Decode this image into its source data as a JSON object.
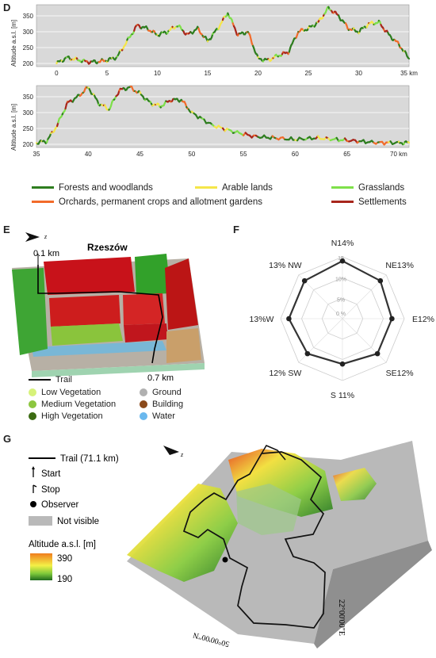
{
  "panels": {
    "D": "D",
    "E": "E",
    "F": "F",
    "G": "G"
  },
  "panel_d": {
    "ylabel": "Altitude a.s.l. [m]",
    "top_xticks": [
      "0",
      "5",
      "10",
      "15",
      "20",
      "25",
      "30",
      "35 km"
    ],
    "top_yticks": [
      "200",
      "250",
      "300",
      "350"
    ],
    "bottom_xticks": [
      "35",
      "40",
      "45",
      "50",
      "55",
      "60",
      "65",
      "70 km"
    ],
    "bottom_yticks": [
      "200",
      "250",
      "300",
      "350"
    ],
    "legend": [
      {
        "label": "Forests and woodlands",
        "color": "#2e7d1f"
      },
      {
        "label": "Arable lands",
        "color": "#f5e64a"
      },
      {
        "label": "Grasslands",
        "color": "#7ee04a"
      },
      {
        "label": "Orchards, permanent crops and allotment gardens",
        "color": "#f26b2a"
      },
      {
        "label": "Settlements",
        "color": "#a8261c"
      }
    ]
  },
  "panel_e": {
    "city": "Rzeszów",
    "north_symbol": "z",
    "marker_start": "0.1 km",
    "marker_end": "0.7 km",
    "legend": [
      {
        "label": "Trail",
        "type": "line",
        "color": "#000000"
      },
      {
        "label": "Low Vegetation",
        "color": "#d7f27a"
      },
      {
        "label": "Ground",
        "color": "#b0b0b0"
      },
      {
        "label": "Medium Vegetation",
        "color": "#8cc63f"
      },
      {
        "label": "Building",
        "color": "#8b4a1a"
      },
      {
        "label": "High Vegetation",
        "color": "#3b6b12"
      },
      {
        "label": "Water",
        "color": "#6ab8ee"
      }
    ]
  },
  "panel_f": {
    "labels": [
      {
        "dir": "N",
        "text": "N14%"
      },
      {
        "dir": "NE",
        "text": "NE13%"
      },
      {
        "dir": "E",
        "text": "E12%"
      },
      {
        "dir": "SE",
        "text": "SE12%"
      },
      {
        "dir": "S",
        "text": "S 11%"
      },
      {
        "dir": "SW",
        "text": "12%  SW"
      },
      {
        "dir": "W",
        "text": "13%W"
      },
      {
        "dir": "NW",
        "text": "13% NW"
      }
    ],
    "rings": [
      "0 %",
      "5%",
      "10%",
      "15"
    ]
  },
  "chart_data": [
    {
      "type": "line",
      "xlabel": "",
      "ylabel": "Altitude a.s.l. [m]",
      "x": [
        0,
        1,
        2,
        3,
        4,
        5,
        6,
        7,
        8,
        9,
        10,
        11,
        12,
        13,
        14,
        15,
        16,
        17,
        18,
        19,
        20,
        21,
        22,
        23,
        24,
        25,
        26,
        27,
        28,
        29,
        30,
        31,
        32,
        33,
        34,
        35
      ],
      "y": [
        200,
        218,
        212,
        205,
        205,
        210,
        220,
        270,
        320,
        310,
        290,
        300,
        320,
        290,
        310,
        270,
        310,
        360,
        290,
        300,
        215,
        210,
        225,
        235,
        300,
        310,
        330,
        375,
        350,
        310,
        300,
        325,
        330,
        290,
        260,
        215
      ],
      "xlim": [
        -2,
        35
      ],
      "ylim": [
        190,
        385
      ]
    },
    {
      "type": "line",
      "xlabel": "",
      "ylabel": "Altitude a.s.l. [m]",
      "x": [
        35,
        36,
        37,
        38,
        39,
        40,
        41,
        42,
        43,
        44,
        45,
        46,
        47,
        48,
        49,
        50,
        52,
        54,
        56,
        58,
        60,
        62,
        64,
        66,
        68,
        70,
        71
      ],
      "y": [
        205,
        210,
        260,
        330,
        350,
        380,
        330,
        310,
        370,
        380,
        360,
        330,
        320,
        340,
        340,
        300,
        260,
        240,
        225,
        220,
        215,
        220,
        215,
        210,
        205,
        205,
        205
      ],
      "xlim": [
        35,
        71
      ],
      "ylim": [
        190,
        385
      ]
    },
    {
      "type": "radar",
      "categories": [
        "N",
        "NE",
        "E",
        "SE",
        "S",
        "SW",
        "W",
        "NW"
      ],
      "values": [
        14,
        13,
        12,
        12,
        11,
        12,
        13,
        13
      ],
      "rmax": 15
    }
  ],
  "panel_g": {
    "north_symbol": "z",
    "legend": {
      "trail": "Trail (71.1 km)",
      "start": "Start",
      "stop": "Stop",
      "observer": "Observer",
      "not_visible": "Not visible",
      "altitude_title": "Altitude a.s.l. [m]",
      "alt_max": "390",
      "alt_min": "190"
    },
    "coord_e": "22°00'00\"E",
    "coord_n": "50°00'00\"N"
  }
}
